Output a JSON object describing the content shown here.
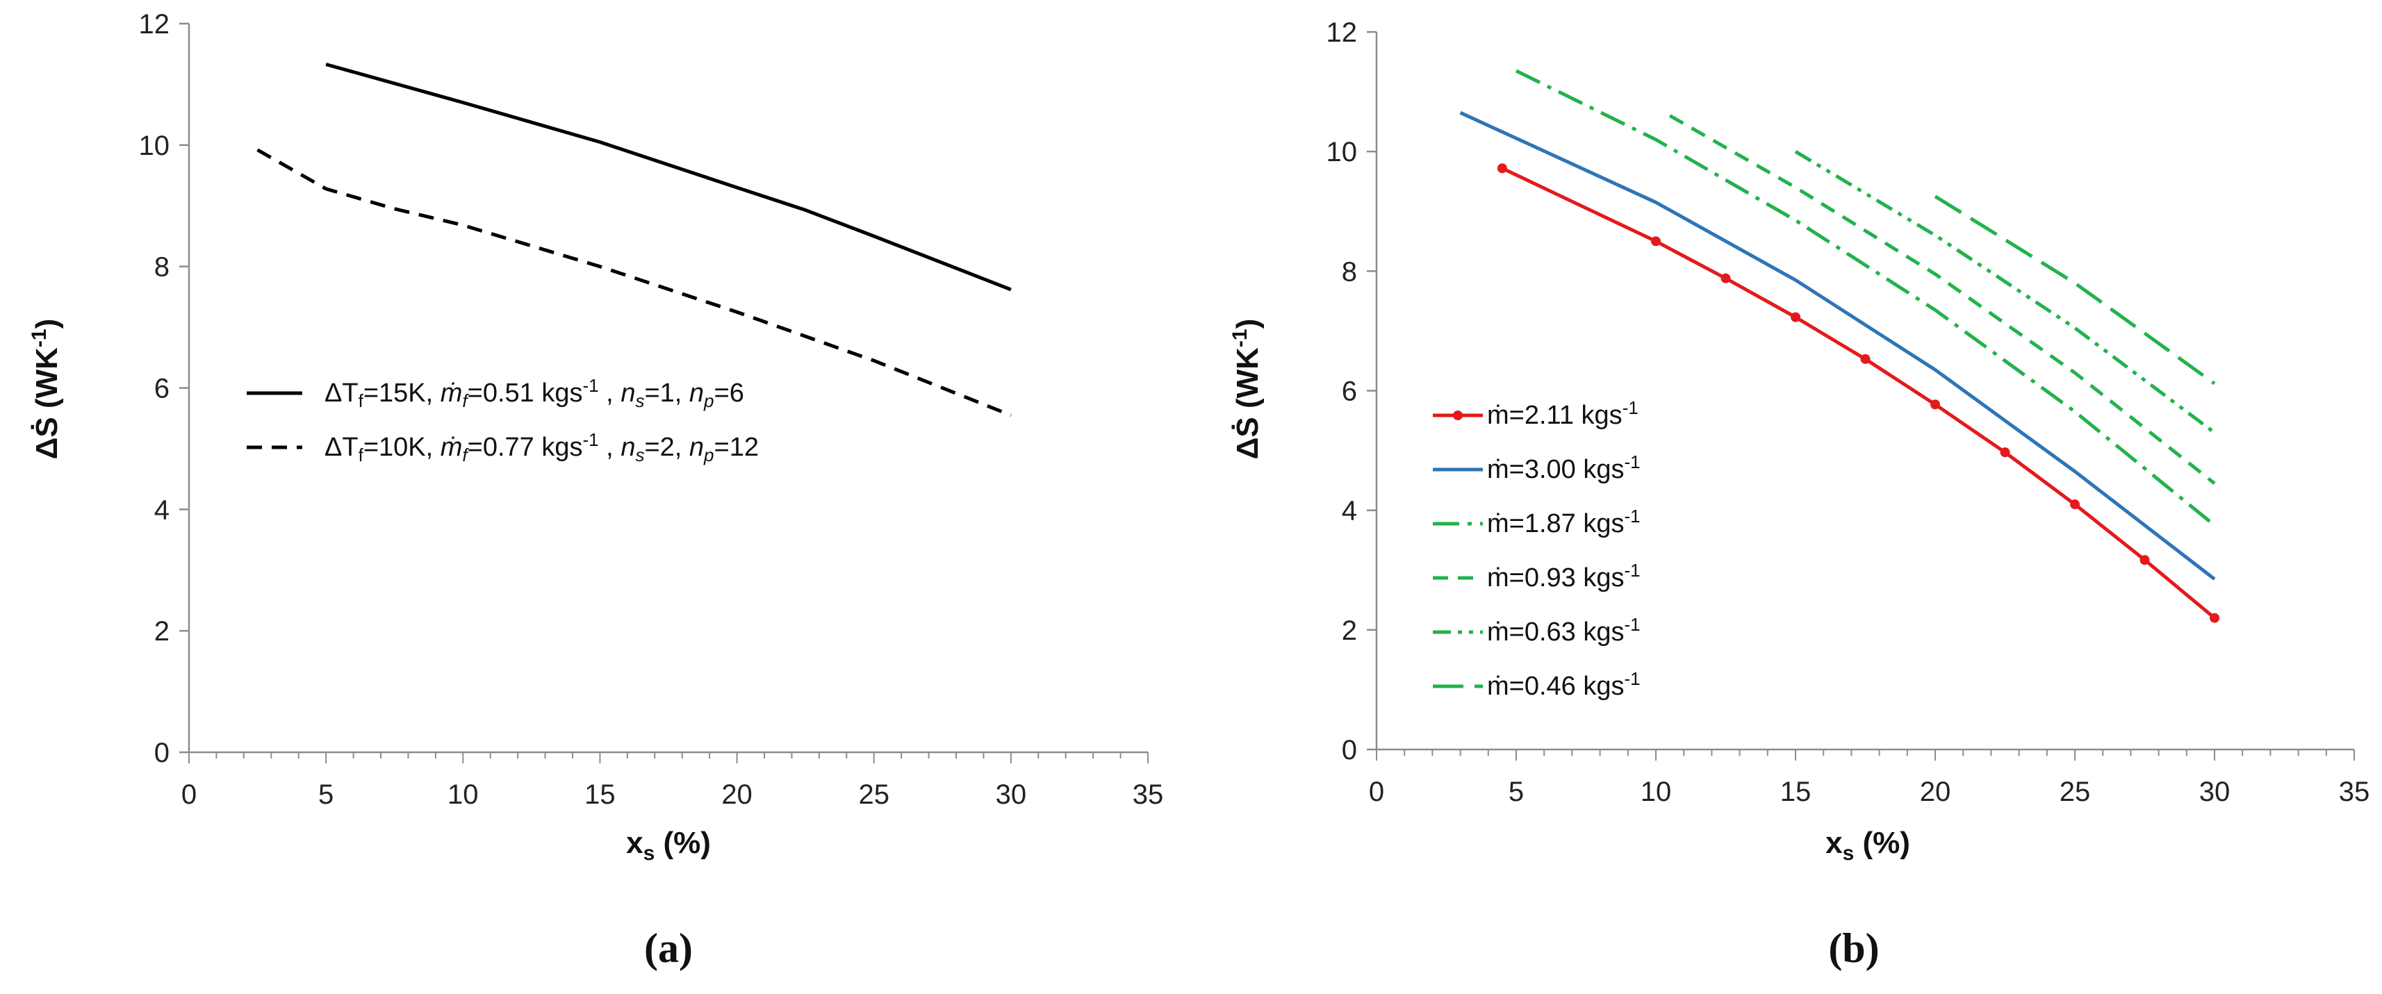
{
  "chart_data": [
    {
      "type": "line",
      "panel_label": "(a)",
      "xlabel_main": "x",
      "xlabel_sub": "s",
      "xlabel_tail": " (%)",
      "ylabel_main": "ΔṠ (WK",
      "ylabel_sup": "-1",
      "ylabel_tail": ")",
      "xlim": [
        0,
        35
      ],
      "ylim": [
        0,
        12
      ],
      "xticks": [
        "0",
        "5",
        "10",
        "15",
        "20",
        "25",
        "30",
        "35"
      ],
      "yticks": [
        "0",
        "2",
        "4",
        "6",
        "8",
        "10",
        "12"
      ],
      "legend_position": "center-left",
      "series": [
        {
          "name": "ΔTf=15K, ṁf=0.51 kgs-1 , ns=1, np=6",
          "legend_parts": [
            "ΔT",
            "f",
            "=15K, ",
            "ṁ",
            "f",
            "=0.51 kgs",
            "-1",
            " , ",
            "n",
            "s",
            "=1, ",
            "n",
            "p",
            "=6"
          ],
          "color": "#000000",
          "dash": "solid",
          "x": [
            5,
            10,
            15,
            20,
            22.5,
            25,
            30
          ],
          "y": [
            11.33,
            10.7,
            10.05,
            9.3,
            8.93,
            8.5,
            7.62
          ]
        },
        {
          "name": "ΔTf=10K, ṁf=0.77 kgs-1 , ns=2, np=12",
          "legend_parts": [
            "ΔT",
            "f",
            "=10K, ",
            "ṁ",
            "f",
            "=0.77 kgs",
            "-1",
            " , ",
            "n",
            "s",
            "=2, ",
            "n",
            "p",
            "=12"
          ],
          "color": "#000000",
          "dash": "dashed",
          "x": [
            2.5,
            5,
            7.5,
            10,
            15,
            20,
            25,
            30
          ],
          "y": [
            9.92,
            9.28,
            8.95,
            8.68,
            8.0,
            7.25,
            6.45,
            5.55
          ]
        }
      ]
    },
    {
      "type": "line",
      "panel_label": "(b)",
      "xlabel_main": "x",
      "xlabel_sub": "s",
      "xlabel_tail": " (%)",
      "ylabel_main": "ΔṠ (WK",
      "ylabel_sup": "-1",
      "ylabel_tail": ")",
      "xlim": [
        0,
        35
      ],
      "ylim": [
        0,
        12
      ],
      "xticks": [
        "0",
        "5",
        "10",
        "15",
        "20",
        "25",
        "30",
        "35"
      ],
      "yticks": [
        "0",
        "2",
        "4",
        "6",
        "8",
        "10",
        "12"
      ],
      "legend_position": "lower-left",
      "series": [
        {
          "name": "ṁ=2.11 kgs-1",
          "legend_main": "ṁ=2.11 kgs",
          "legend_sup": "-1",
          "color": "#e31a1c",
          "dash": "solid",
          "markers": true,
          "x": [
            4.5,
            10,
            12.5,
            15,
            17.5,
            20,
            22.5,
            25,
            27.5,
            30
          ],
          "y": [
            9.72,
            8.5,
            7.88,
            7.23,
            6.53,
            5.77,
            4.97,
            4.1,
            3.17,
            2.2
          ]
        },
        {
          "name": "ṁ=3.00 kgs-1",
          "legend_main": "ṁ=3.00 kgs",
          "legend_sup": "-1",
          "color": "#2e75b6",
          "dash": "solid",
          "markers": false,
          "x": [
            3,
            10,
            15,
            20,
            25,
            30
          ],
          "y": [
            10.65,
            9.15,
            7.85,
            6.35,
            4.65,
            2.85
          ]
        },
        {
          "name": "ṁ=1.87 kgs-1",
          "legend_main": "ṁ=1.87 kgs",
          "legend_sup": "-1",
          "color": "#22b24c",
          "dash": "longdashdot",
          "markers": false,
          "x": [
            5,
            10,
            15,
            20,
            25,
            30
          ],
          "y": [
            11.35,
            10.2,
            8.85,
            7.35,
            5.65,
            3.75
          ]
        },
        {
          "name": "ṁ=0.93 kgs-1",
          "legend_main": "ṁ=0.93 kgs",
          "legend_sup": "-1",
          "color": "#22b24c",
          "dash": "dashed",
          "markers": false,
          "x": [
            10.5,
            15,
            20,
            25,
            30
          ],
          "y": [
            10.6,
            9.4,
            7.95,
            6.3,
            4.45
          ]
        },
        {
          "name": "ṁ=0.63 kgs-1",
          "legend_main": "ṁ=0.63 kgs",
          "legend_sup": "-1",
          "color": "#22b24c",
          "dash": "dashdotdot",
          "markers": false,
          "x": [
            15,
            20,
            25,
            30
          ],
          "y": [
            10.0,
            8.6,
            7.05,
            5.3
          ]
        },
        {
          "name": "ṁ=0.46 kgs-1",
          "legend_main": "ṁ=0.46 kgs",
          "legend_sup": "-1",
          "color": "#22b24c",
          "dash": "longdash",
          "markers": false,
          "x": [
            20,
            25,
            30
          ],
          "y": [
            9.25,
            7.8,
            6.12
          ]
        }
      ]
    }
  ]
}
